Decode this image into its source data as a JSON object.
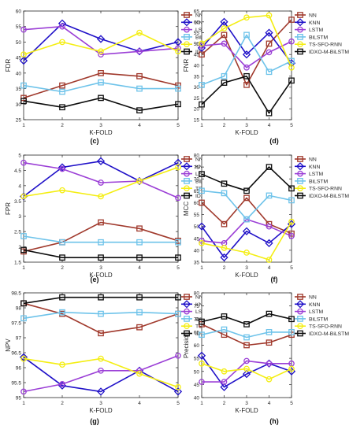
{
  "series_style": [
    {
      "color": "#a0392c",
      "marker": "square"
    },
    {
      "color": "#1f10c8",
      "marker": "diamond"
    },
    {
      "color": "#9b3fd6",
      "marker": "circle"
    },
    {
      "color": "#6ec3ea",
      "marker": "square"
    },
    {
      "color": "#f4ee12",
      "marker": "circle"
    },
    {
      "color": "#0c0c0c",
      "marker": "square"
    }
  ],
  "chart_data": [
    {
      "type": "line",
      "tag": "(c)",
      "ylabel": "FDR",
      "xlabel": "K-FOLD",
      "x": [
        1,
        2,
        3,
        4,
        5
      ],
      "xticks": [
        "1",
        "2",
        "3",
        "4",
        "5"
      ],
      "ylim": [
        25,
        60
      ],
      "yticks": [
        "25",
        "30",
        "35",
        "40",
        "45",
        "50",
        "55",
        "60"
      ],
      "legend": "top-right",
      "grid": false,
      "series": [
        {
          "name": "NN",
          "values": [
            32,
            36,
            40,
            39,
            36
          ]
        },
        {
          "name": "KNN",
          "values": [
            44,
            56,
            51,
            47,
            50
          ]
        },
        {
          "name": "LSTM",
          "values": [
            54,
            55,
            46,
            47,
            48
          ]
        },
        {
          "name": "BiLSTM",
          "values": [
            36,
            34,
            37,
            35,
            35
          ]
        },
        {
          "name": "TS-SFO-RNN",
          "values": [
            46,
            50,
            47,
            53,
            47
          ]
        },
        {
          "name": "IDXO-M-BiLSTM",
          "values": [
            31,
            29,
            32,
            28,
            30
          ]
        }
      ]
    },
    {
      "type": "line",
      "tag": "(d)",
      "ylabel": "FNR",
      "xlabel": "K-FOLD",
      "x": [
        1,
        2,
        3,
        4,
        5
      ],
      "xticks": [
        "1",
        "2",
        "3",
        "4",
        "5"
      ],
      "ylim": [
        15,
        65
      ],
      "yticks": [
        "15",
        "20",
        "25",
        "30",
        "35",
        "40",
        "45",
        "50",
        "55",
        "60",
        "65"
      ],
      "legend": "top-right",
      "grid": false,
      "series": [
        {
          "name": "NN",
          "values": [
            45,
            54,
            31,
            50,
            61
          ]
        },
        {
          "name": "KNN",
          "values": [
            48,
            60,
            45,
            55,
            41
          ]
        },
        {
          "name": "LSTM",
          "values": [
            49,
            50,
            39,
            46,
            51
          ]
        },
        {
          "name": "BiLSTM",
          "values": [
            31,
            35,
            54,
            37,
            42
          ]
        },
        {
          "name": "TS-SFO-RNN",
          "values": [
            50,
            57,
            62,
            63,
            39
          ]
        },
        {
          "name": "IDXO-M-BiLSTM",
          "values": [
            22,
            32,
            35,
            18,
            33
          ]
        }
      ]
    },
    {
      "type": "line",
      "tag": "(e)",
      "ylabel": "FPR",
      "xlabel": "K-FOLD",
      "x": [
        1,
        2,
        3,
        4,
        5
      ],
      "xticks": [
        "1",
        "2",
        "3",
        "4",
        "5"
      ],
      "ylim": [
        1.5,
        5
      ],
      "yticks": [
        "1.5",
        "2",
        "2.5",
        "3",
        "3.5",
        "4",
        "4.5",
        "5"
      ],
      "legend": "top-right",
      "grid": false,
      "series": [
        {
          "name": "NN",
          "values": [
            1.85,
            2.15,
            2.8,
            2.6,
            2.2
          ]
        },
        {
          "name": "KNN",
          "values": [
            3.65,
            4.6,
            4.8,
            4.15,
            4.75
          ]
        },
        {
          "name": "LSTM",
          "values": [
            4.75,
            4.55,
            4.1,
            4.15,
            3.6
          ]
        },
        {
          "name": "BiLSTM",
          "values": [
            2.35,
            2.15,
            2.15,
            2.15,
            2.15
          ]
        },
        {
          "name": "TS-SFO-RNN",
          "values": [
            3.65,
            3.85,
            3.65,
            4.15,
            4.6
          ]
        },
        {
          "name": "IDXO-M-BiLSTM",
          "values": [
            1.9,
            1.65,
            1.65,
            1.65,
            1.65
          ]
        }
      ]
    },
    {
      "type": "line",
      "tag": "(f)",
      "ylabel": "MCC",
      "xlabel": "K-FOLD",
      "x": [
        1,
        2,
        3,
        4,
        5
      ],
      "xticks": [
        "1",
        "2",
        "3",
        "4",
        "5"
      ],
      "ylim": [
        35,
        80
      ],
      "yticks": [
        "35",
        "40",
        "45",
        "50",
        "55",
        "60",
        "65",
        "70",
        "75",
        "80"
      ],
      "legend": "top-right",
      "grid": false,
      "series": [
        {
          "name": "NN",
          "values": [
            60,
            51,
            62,
            51,
            47
          ]
        },
        {
          "name": "KNN",
          "values": [
            50,
            37,
            48,
            43,
            51
          ]
        },
        {
          "name": "LSTM",
          "values": [
            44,
            43,
            53,
            50,
            46
          ]
        },
        {
          "name": "BiLSTM",
          "values": [
            65,
            64,
            53,
            63,
            61
          ]
        },
        {
          "name": "TS-SFO-RNN",
          "values": [
            43,
            41,
            39,
            36,
            52
          ]
        },
        {
          "name": "IDXO-M-BiLSTM",
          "values": [
            72,
            68,
            65,
            75,
            66
          ]
        }
      ]
    },
    {
      "type": "line",
      "tag": "(g)",
      "ylabel": "NPV",
      "xlabel": "K-FOLD",
      "x": [
        1,
        2,
        3,
        4,
        5
      ],
      "xticks": [
        "1",
        "2",
        "3",
        "4",
        "5"
      ],
      "ylim": [
        95,
        98.5
      ],
      "yticks": [
        "95",
        "95.5",
        "96",
        "96.5",
        "97",
        "97.5",
        "98",
        "98.5"
      ],
      "legend": "top-right",
      "grid": false,
      "series": [
        {
          "name": "NN",
          "values": [
            98.15,
            97.8,
            97.15,
            97.35,
            97.8
          ]
        },
        {
          "name": "KNN",
          "values": [
            96.35,
            95.4,
            95.2,
            95.9,
            95.2
          ]
        },
        {
          "name": "LSTM",
          "values": [
            95.2,
            95.45,
            95.9,
            95.9,
            96.4
          ]
        },
        {
          "name": "BiLSTM",
          "values": [
            97.65,
            97.85,
            97.8,
            97.85,
            97.8
          ]
        },
        {
          "name": "TS-SFO-RNN",
          "values": [
            96.3,
            96.1,
            96.3,
            95.8,
            95.35
          ]
        },
        {
          "name": "IDXO-M-BiLSTM",
          "values": [
            98.15,
            98.35,
            98.35,
            98.35,
            98.35
          ]
        }
      ]
    },
    {
      "type": "line",
      "tag": "(h)",
      "ylabel": "Precision",
      "xlabel": "K-FOLD",
      "x": [
        1,
        2,
        3,
        4,
        5
      ],
      "xticks": [
        "1",
        "2",
        "3",
        "4",
        "5"
      ],
      "ylim": [
        40,
        80
      ],
      "yticks": [
        "40",
        "45",
        "50",
        "55",
        "60",
        "65",
        "70",
        "75",
        "80"
      ],
      "legend": "top-right",
      "grid": false,
      "series": [
        {
          "name": "NN",
          "values": [
            68,
            64,
            60,
            61,
            64
          ]
        },
        {
          "name": "KNN",
          "values": [
            56,
            44,
            49,
            53,
            50
          ]
        },
        {
          "name": "LSTM",
          "values": [
            46,
            46,
            54,
            53,
            53
          ]
        },
        {
          "name": "BiLSTM",
          "values": [
            64,
            66,
            63,
            65,
            65
          ]
        },
        {
          "name": "TS-SFO-RNN",
          "values": [
            53,
            50,
            51,
            47,
            51
          ]
        },
        {
          "name": "IDXO-M-BiLSTM",
          "values": [
            69,
            71,
            68,
            72,
            70
          ]
        }
      ]
    }
  ]
}
